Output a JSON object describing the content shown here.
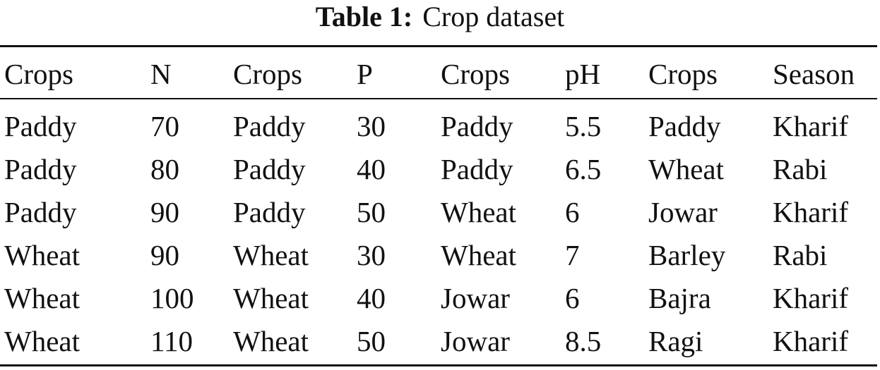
{
  "caption": {
    "label": "Table 1:",
    "text": "Crop dataset"
  },
  "table": {
    "headers": [
      "Crops",
      "N",
      "Crops",
      "P",
      "Crops",
      "pH",
      "Crops",
      "Season"
    ],
    "rows": [
      [
        "Paddy",
        "70",
        "Paddy",
        "30",
        "Paddy",
        "5.5",
        "Paddy",
        "Kharif"
      ],
      [
        "Paddy",
        "80",
        "Paddy",
        "40",
        "Paddy",
        "6.5",
        "Wheat",
        "Rabi"
      ],
      [
        "Paddy",
        "90",
        "Paddy",
        "50",
        "Wheat",
        "6",
        "Jowar",
        "Kharif"
      ],
      [
        "Wheat",
        "90",
        "Wheat",
        "30",
        "Wheat",
        "7",
        "Barley",
        "Rabi"
      ],
      [
        "Wheat",
        "100",
        "Wheat",
        "40",
        "Jowar",
        "6",
        "Bajra",
        "Kharif"
      ],
      [
        "Wheat",
        "110",
        "Wheat",
        "50",
        "Jowar",
        "8.5",
        "Ragi",
        "Kharif"
      ]
    ]
  }
}
